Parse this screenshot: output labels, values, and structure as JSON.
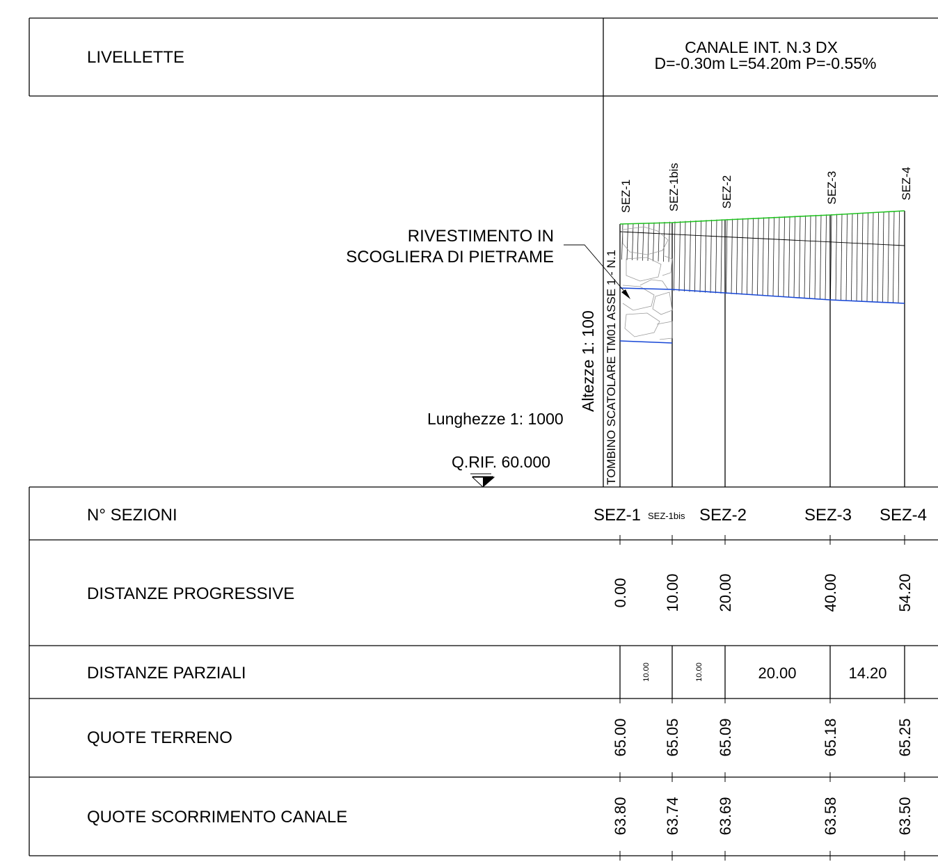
{
  "header": {
    "livellette_label": "LIVELLETTE",
    "channel_title": "CANALE INT. N.3 DX",
    "channel_params": "D=-0.30m L=54.20m P=-0.55%"
  },
  "profile": {
    "section_names": [
      "SEZ-1",
      "SEZ-1bis",
      "SEZ-2",
      "SEZ-3",
      "SEZ-4"
    ],
    "tombino_label": "TOMBINO SCATOLARE TM01 ASSE 1 - N.1",
    "rivestimento_line1": "RIVESTIMENTO IN",
    "rivestimento_line2": "SCOGLIERA DI PIETRAME",
    "altezze_scale": "Altezze 1: 100",
    "lunghezze_scale": "Lunghezze 1: 1000",
    "reference_level": "Q.RIF. 60.000",
    "colors": {
      "ground": "#1fc21f",
      "invert": "#1646d6",
      "stones": "#9a9a9a"
    }
  },
  "table": {
    "row_labels": {
      "sezioni": "N° SEZIONI",
      "progressive": "DISTANZE PROGRESSIVE",
      "parziali": "DISTANZE PARZIALI",
      "terreno": "QUOTE TERRENO",
      "scorrimento": "QUOTE SCORRIMENTO CANALE"
    },
    "sezioni": [
      "SEZ-1",
      "SEZ-1bis",
      "SEZ-2",
      "SEZ-3",
      "SEZ-4"
    ],
    "progressive": [
      "0.00",
      "10.00",
      "20.00",
      "40.00",
      "54.20"
    ],
    "parziali": [
      "10.00",
      "10.00",
      "20.00",
      "14.20"
    ],
    "terreno": [
      "65.00",
      "65.05",
      "65.09",
      "65.18",
      "65.25"
    ],
    "scorrimento": [
      "63.80",
      "63.74",
      "63.69",
      "63.58",
      "63.50"
    ]
  }
}
